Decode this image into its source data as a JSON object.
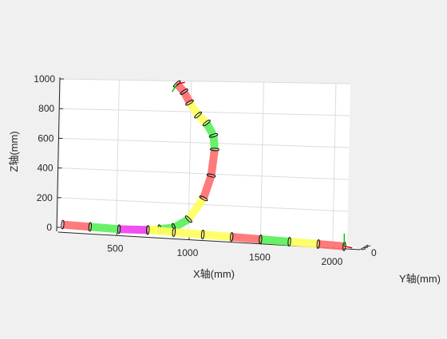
{
  "chart_data": {
    "type": "line",
    "title": "",
    "xlabel": "X轴(mm)",
    "ylabel": "Y轴(mm)",
    "zlabel": "Z轴(mm)",
    "x_ticks": [
      500,
      1000,
      1500,
      2000
    ],
    "z_ticks": [
      0,
      200,
      400,
      600,
      800,
      1000
    ],
    "y_ticks": [
      0
    ],
    "xlim": [
      100,
      2100
    ],
    "zlim": [
      0,
      1000
    ],
    "grid": true,
    "view": "3d",
    "segment_colors": {
      "red": "#ff7070",
      "green": "#5cf05c",
      "yellow": "#ffff60",
      "magenta": "#ee44ee"
    },
    "series": [
      {
        "x": [
          130,
          320,
          520,
          720,
          800,
          900,
          1000,
          1100,
          1150,
          1170,
          1160,
          1110,
          1050,
          990,
          950,
          900
        ],
        "z": [
          20,
          15,
          10,
          15,
          25,
          40,
          100,
          240,
          390,
          560,
          650,
          730,
          780,
          860,
          930,
          980
        ],
        "colors": [
          "red",
          "green",
          "magenta",
          "yellow",
          "green",
          "green",
          "yellow",
          "red",
          "red",
          "green",
          "green",
          "yellow",
          "yellow",
          "red",
          "red"
        ]
      },
      {
        "x": [
          720,
          900,
          1100,
          1300,
          1500,
          1700,
          1900,
          2080
        ],
        "z": [
          15,
          10,
          5,
          0,
          -5,
          -10,
          -15,
          -20
        ],
        "colors": [
          "yellow",
          "yellow",
          "yellow",
          "red",
          "green",
          "yellow",
          "red"
        ]
      }
    ]
  }
}
